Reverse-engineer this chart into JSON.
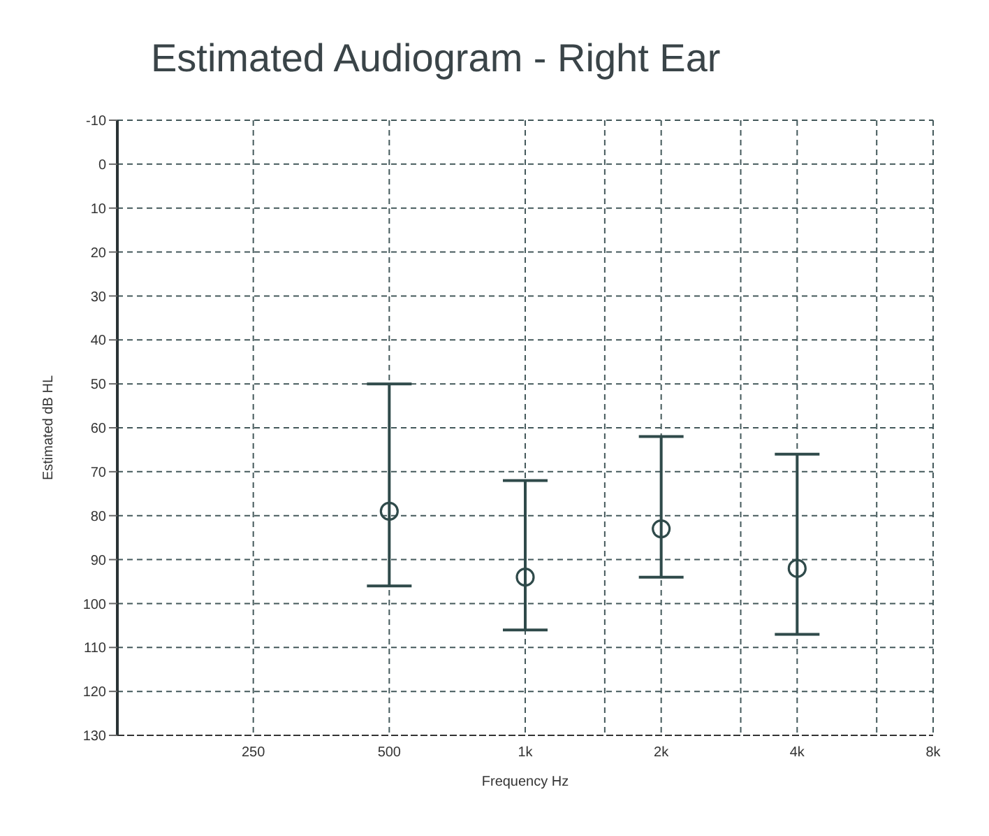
{
  "chart_data": {
    "type": "scatter",
    "title": "Estimated Audiogram - Right Ear",
    "xlabel": "Frequency Hz",
    "ylabel": "Estimated dB HL",
    "x": [
      500,
      1000,
      2000,
      4000
    ],
    "series": [
      {
        "color": "#2f4a4a",
        "values": [
          79,
          94,
          83,
          92
        ],
        "errors": [
          [
            50,
            96
          ],
          [
            72,
            106
          ],
          [
            62,
            94
          ],
          [
            66,
            107
          ]
        ]
      }
    ],
    "log": "x",
    "xlim": [
      125,
      8000
    ],
    "xticks": [
      250,
      500,
      {
        "value": 1000,
        "label": "1k"
      },
      {
        "value": 1500,
        "label": null
      },
      {
        "value": 2000,
        "label": "2k"
      },
      {
        "value": 3000,
        "label": null
      },
      {
        "value": 4000,
        "label": "4k"
      },
      {
        "value": 6000,
        "label": null
      },
      {
        "value": 8000,
        "label": "8k"
      }
    ],
    "ylim": [
      130,
      -10
    ],
    "yticks": [
      -10,
      0,
      10,
      20,
      30,
      40,
      50,
      60,
      70,
      80,
      90,
      100,
      110,
      120,
      130
    ],
    "grid": true,
    "marker": "circle"
  }
}
